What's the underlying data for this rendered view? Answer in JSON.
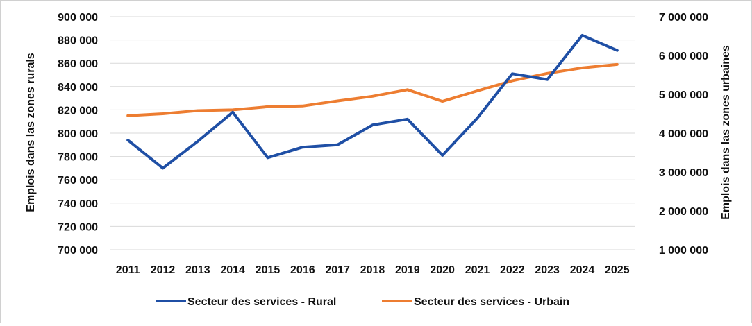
{
  "chart_data": {
    "type": "line",
    "title": "",
    "x": [
      "2011",
      "2012",
      "2013",
      "2014",
      "2015",
      "2016",
      "2017",
      "2018",
      "2019",
      "2020",
      "2021",
      "2022",
      "2023",
      "2024",
      "2025"
    ],
    "y_left_label": "Emplois dans las zones rurals",
    "y_right_label": "Emplois dans las zones urbaines",
    "y_left_range": [
      700000,
      900000
    ],
    "y_right_range": [
      1000000,
      7000000
    ],
    "y_left_ticks": [
      "700 000",
      "720 000",
      "740 000",
      "760 000",
      "780 000",
      "800 000",
      "820 000",
      "840 000",
      "860 000",
      "880 000",
      "900 000"
    ],
    "y_right_ticks": [
      "1 000 000",
      "2 000 000",
      "3 000 000",
      "4 000 000",
      "5 000 000",
      "6 000 000",
      "7 000 000"
    ],
    "y_left_tick_values": [
      700000,
      720000,
      740000,
      760000,
      780000,
      800000,
      820000,
      840000,
      860000,
      880000,
      900000
    ],
    "y_right_tick_values": [
      1000000,
      2000000,
      3000000,
      4000000,
      5000000,
      6000000,
      7000000
    ],
    "grid": true,
    "legend_position": "bottom",
    "series": [
      {
        "name": "Secteur des services - Rural",
        "axis": "left",
        "color": "#1f4fa5",
        "values": [
          794000,
          770000,
          793000,
          818000,
          779000,
          788000,
          790000,
          807000,
          812000,
          781000,
          813000,
          851000,
          846000,
          884000,
          871000
        ]
      },
      {
        "name": "Secteur des services - Urbain",
        "axis": "right",
        "color": "#ed7d31",
        "values": [
          4450000,
          4500000,
          4580000,
          4600000,
          4680000,
          4700000,
          4830000,
          4950000,
          5120000,
          4820000,
          5090000,
          5350000,
          5540000,
          5680000,
          5770000
        ]
      }
    ]
  }
}
